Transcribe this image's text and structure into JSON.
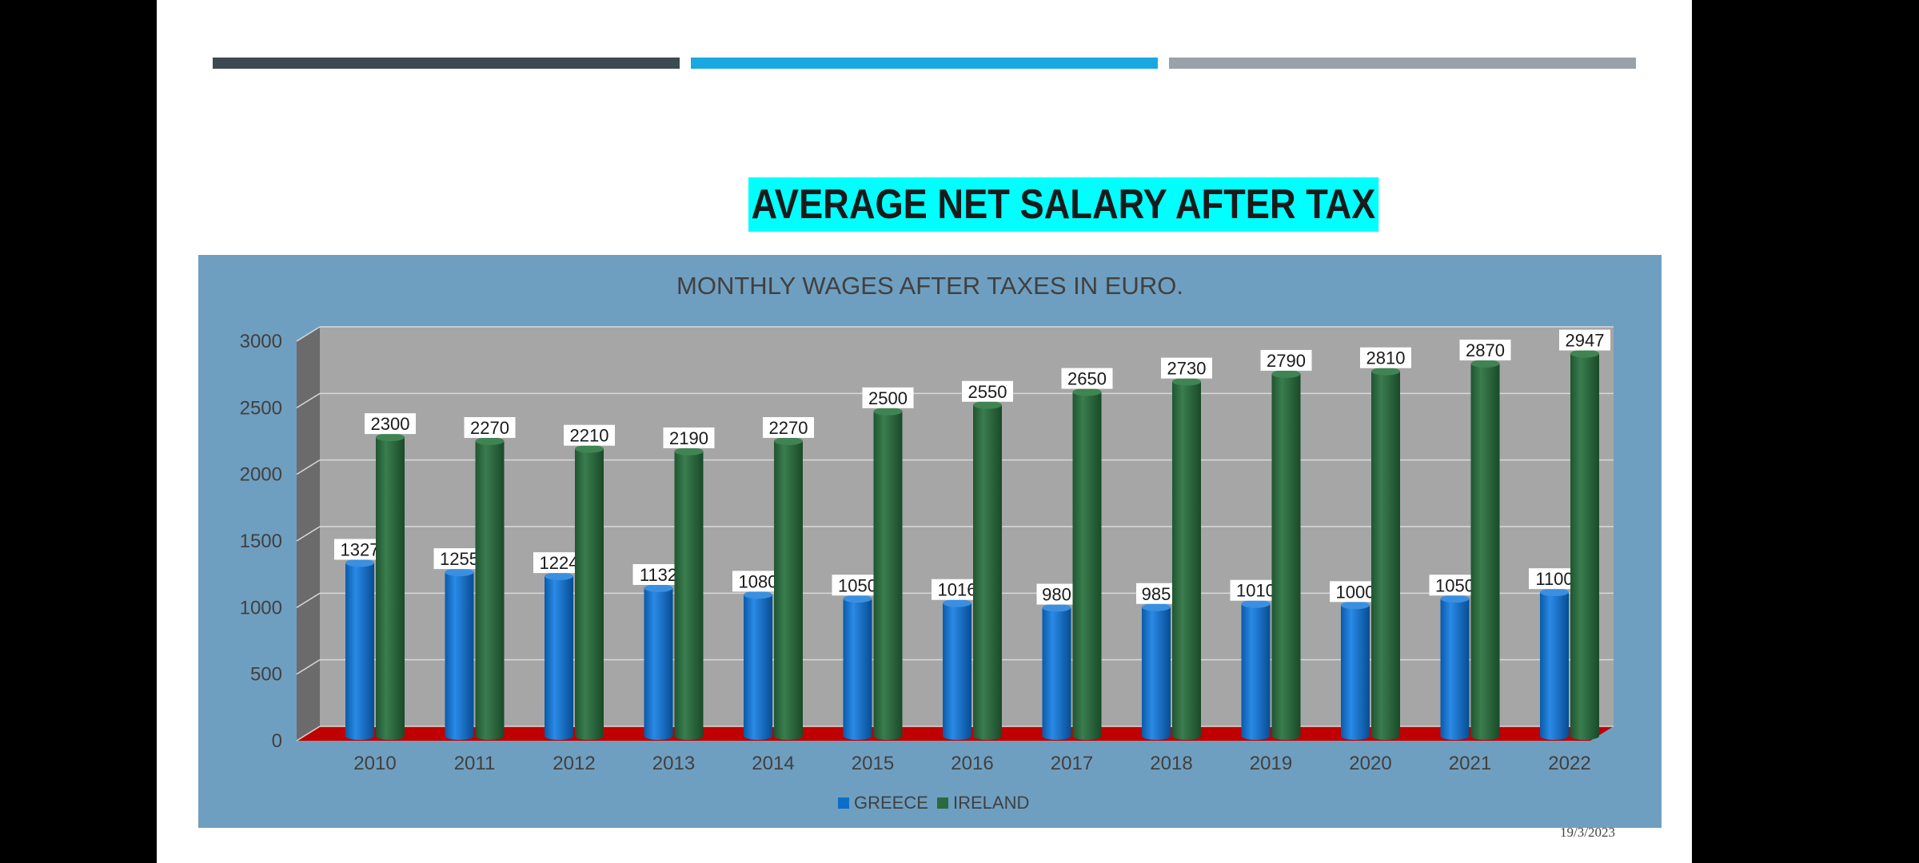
{
  "slide": {
    "title": "AVERAGE NET SALARY AFTER TAX",
    "date": "19/3/2023",
    "top_bar_colors": [
      "#3c4a52",
      "#19a8e0",
      "#9aa1a8"
    ]
  },
  "colors": {
    "background": "#000000",
    "slide": "#ffffff",
    "title_highlight": "#00ffff",
    "chart_area": "#6f9fc0",
    "plot_wall": "#a6a6a6",
    "side_wall": "#6b6b6b",
    "floor": "#c00000",
    "greece": "#0a6fc9",
    "ireland": "#2a6a3e"
  },
  "chart_data": {
    "type": "bar",
    "title": "MONTHLY WAGES AFTER TAXES IN EURO.",
    "categories": [
      "2010",
      "2011",
      "2012",
      "2013",
      "2014",
      "2015",
      "2016",
      "2017",
      "2018",
      "2019",
      "2020",
      "2021",
      "2022"
    ],
    "series": [
      {
        "name": "GREECE",
        "color": "#0a6fc9",
        "values": [
          1327,
          1255,
          1224,
          1132,
          1080,
          1050,
          1016,
          980,
          985,
          1010,
          1000,
          1050,
          1100
        ]
      },
      {
        "name": "IRELAND",
        "color": "#2a6a3e",
        "values": [
          2300,
          2270,
          2210,
          2190,
          2270,
          2500,
          2550,
          2650,
          2730,
          2790,
          2810,
          2870,
          2947
        ]
      }
    ],
    "ylim": [
      0,
      3000
    ],
    "yticks": [
      "0",
      "500",
      "1000",
      "1500",
      "2000",
      "2500",
      "3000"
    ],
    "grid": true,
    "legend": "bottom",
    "data_labels": true,
    "style": "3d-cylinder"
  }
}
